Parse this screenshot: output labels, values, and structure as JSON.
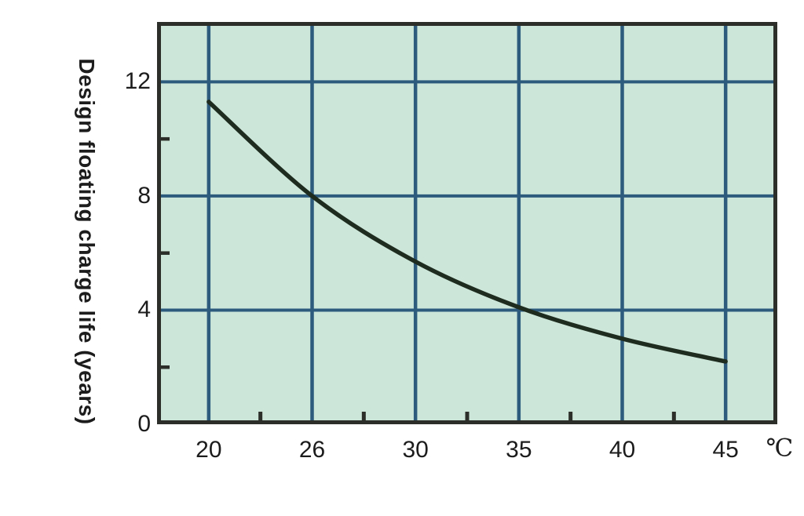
{
  "page": {
    "background_color": "#ffffff"
  },
  "chart_data": {
    "type": "line",
    "title": "",
    "ylabel": "Design floating charge life (years)",
    "xlabel": "",
    "x_unit": "℃",
    "x_tick_labels": [
      "20",
      "26",
      "30",
      "35",
      "40",
      "45"
    ],
    "series": [
      {
        "name": "design-floating-charge-life",
        "x": [
          20,
          26,
          30,
          35,
          40,
          45
        ],
        "values": [
          11.3,
          8.0,
          5.7,
          4.1,
          3.0,
          2.2
        ]
      }
    ],
    "y_ticks": [
      {
        "value": 12,
        "label": "12"
      },
      {
        "value": 8,
        "label": "8"
      },
      {
        "value": 4,
        "label": "4"
      },
      {
        "value": 0,
        "label": "0"
      }
    ],
    "y_minor_ticks": [
      10,
      6,
      2
    ],
    "ylim": [
      0,
      14.1
    ],
    "x_axis_spacing": "equal-category-spacing",
    "x_minor_ticks_between_labels": true,
    "grid": true,
    "legend": "none",
    "colors": {
      "plot_background": "#cce7d9",
      "gridline": "#2d5b7e",
      "curve": "#1e2b1f",
      "border_and_ticks": "#2b2e29",
      "text": "#1c1c1c"
    }
  }
}
